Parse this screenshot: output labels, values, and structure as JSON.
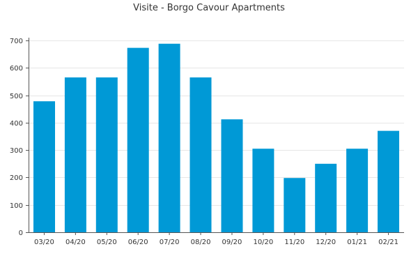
{
  "chart_data": {
    "type": "bar",
    "title": "Visite - Borgo Cavour Apartments",
    "xlabel": "",
    "ylabel": "",
    "categories": [
      "03/20",
      "04/20",
      "05/20",
      "06/20",
      "07/20",
      "08/20",
      "09/20",
      "10/20",
      "11/20",
      "12/20",
      "01/21",
      "02/21"
    ],
    "values": [
      478,
      565,
      565,
      673,
      688,
      565,
      412,
      305,
      198,
      250,
      305,
      370
    ],
    "ylim": [
      0,
      700
    ],
    "yticks": [
      0,
      100,
      200,
      300,
      400,
      500,
      600,
      700
    ],
    "grid": true,
    "legend": "none",
    "bar_color": "#0099d6"
  }
}
